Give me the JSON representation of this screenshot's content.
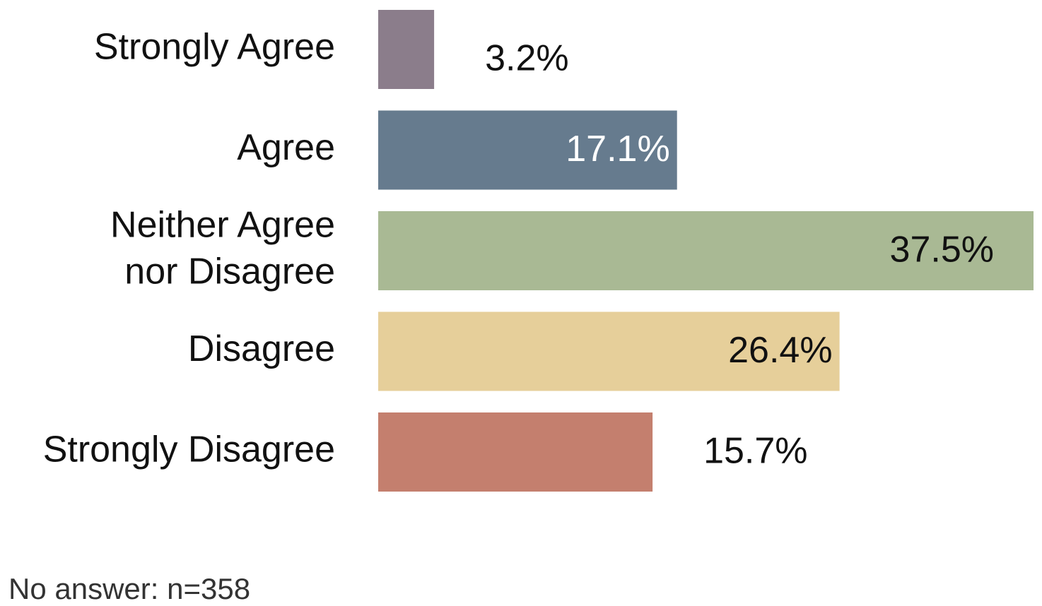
{
  "chart_data": {
    "type": "bar",
    "orientation": "horizontal",
    "categories": [
      "Strongly Agree",
      "Agree",
      "Neither Agree nor Disagree",
      "Disagree",
      "Strongly Disagree"
    ],
    "category_lines": [
      [
        "Strongly Agree"
      ],
      [
        "Agree"
      ],
      [
        "Neither Agree",
        "nor Disagree"
      ],
      [
        "Disagree"
      ],
      [
        "Strongly Disagree"
      ]
    ],
    "values": [
      3.2,
      17.1,
      37.5,
      26.4,
      15.7
    ],
    "value_labels": [
      "3.2%",
      "17.1%",
      "37.5%",
      "26.4%",
      "15.7%"
    ],
    "colors": [
      "#8b7d8b",
      "#667b8e",
      "#a9b994",
      "#e6cf9a",
      "#c47f6e"
    ],
    "label_colors": [
      "#111111",
      "#ffffff",
      "#111111",
      "#111111",
      "#111111"
    ],
    "label_inside": [
      false,
      true,
      true,
      true,
      false
    ],
    "title": "",
    "xlabel": "",
    "ylabel": "",
    "xlim": [
      0,
      37.5
    ],
    "grid": false,
    "legend": "none"
  },
  "footnote": "No answer: n=358"
}
